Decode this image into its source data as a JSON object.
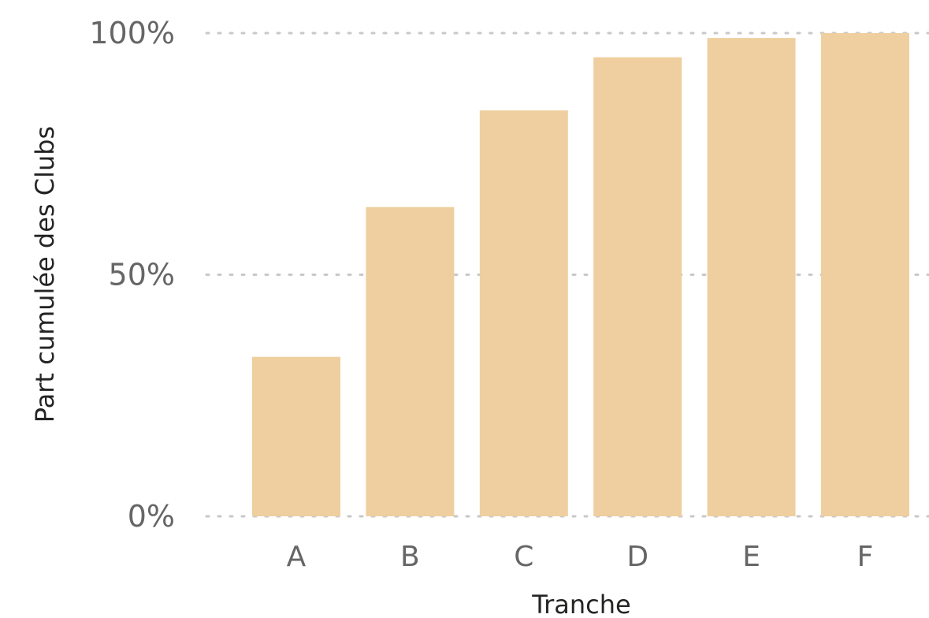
{
  "chart_data": {
    "type": "bar",
    "categories": [
      "A",
      "B",
      "C",
      "D",
      "E",
      "F"
    ],
    "values": [
      33,
      64,
      84,
      95,
      99,
      100
    ],
    "xlabel": "Tranche",
    "ylabel": "Part cumulée des Clubs",
    "ylim": [
      0,
      100
    ],
    "yticks": [
      0,
      50,
      100
    ],
    "ytick_labels": [
      "0%",
      "50%",
      "100%"
    ],
    "grid": true,
    "bar_color": "#EFCF9F",
    "value_unit": "%"
  }
}
